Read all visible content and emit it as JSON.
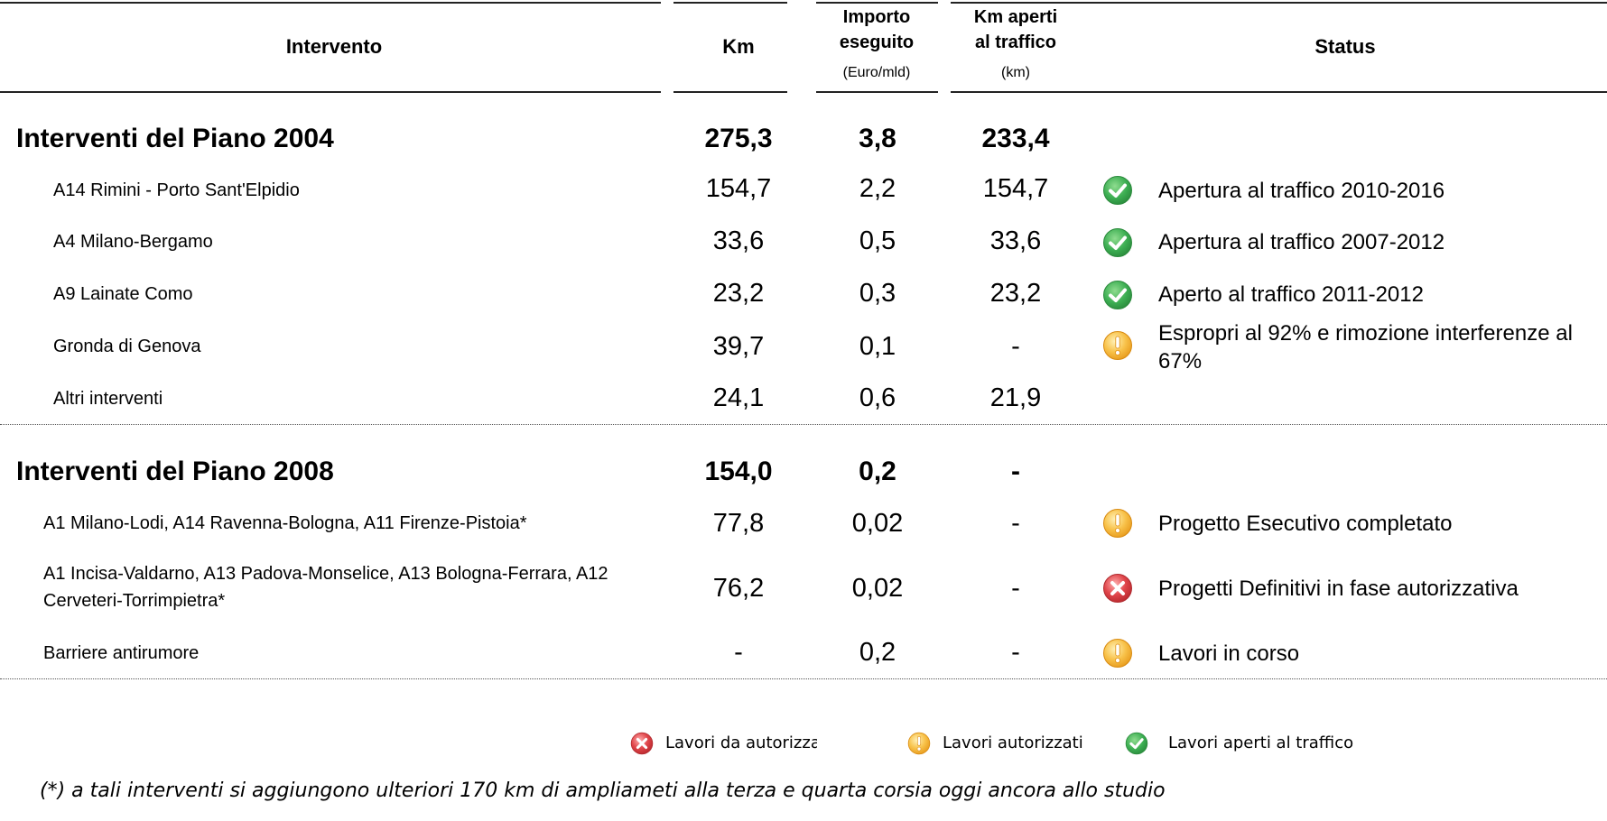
{
  "header": {
    "intervento": "Intervento",
    "km": "Km",
    "importo_line1": "Importo",
    "importo_line2": "eseguito",
    "importo_unit": "(Euro/mld)",
    "kmaperti_line1": "Km aperti",
    "kmaperti_line2": "al traffico",
    "kmaperti_unit": "(km)",
    "status": "Status"
  },
  "groups": [
    {
      "title": "Interventi del Piano 2004",
      "km": "275,3",
      "importo": "3,8",
      "km_aperti": "233,4",
      "rows": [
        {
          "label": "A14 Rimini - Porto Sant'Elpidio",
          "km": "154,7",
          "importo": "2,2",
          "km_aperti": "154,7",
          "status_icon": "check-icon",
          "status": "Apertura al traffico 2010-2016"
        },
        {
          "label": "A4 Milano-Bergamo",
          "km": "33,6",
          "importo": "0,5",
          "km_aperti": "33,6",
          "status_icon": "check-icon",
          "status": "Apertura al traffico 2007-2012"
        },
        {
          "label": "A9 Lainate Como",
          "km": "23,2",
          "importo": "0,3",
          "km_aperti": "23,2",
          "status_icon": "check-icon",
          "status": "Aperto al traffico 2011-2012"
        },
        {
          "label": "Gronda di Genova",
          "km": "39,7",
          "importo": "0,1",
          "km_aperti": "-",
          "status_icon": "warning-icon",
          "status": "Espropri al 92% e rimozione interferenze al 67%"
        },
        {
          "label": "Altri interventi",
          "km": "24,1",
          "importo": "0,6",
          "km_aperti": "21,9",
          "status_icon": "",
          "status": ""
        }
      ]
    },
    {
      "title": "Interventi del Piano 2008",
      "km": "154,0",
      "importo": "0,2",
      "km_aperti": "-",
      "rows": [
        {
          "label": "A1 Milano-Lodi, A14 Ravenna-Bologna, A11 Firenze-Pistoia*",
          "km": "77,8",
          "importo": "0,02",
          "km_aperti": "-",
          "status_icon": "warning-icon",
          "status": "Progetto Esecutivo completato"
        },
        {
          "label": "A1 Incisa-Valdarno, A13 Padova-Monselice, A13 Bologna-Ferrara, A12 Cerveteri-Torrimpietra*",
          "km": "76,2",
          "importo": "0,02",
          "km_aperti": "-",
          "status_icon": "cross-icon",
          "status": "Progetti Definitivi in fase autorizzativa"
        },
        {
          "label": "Barriere antirumore",
          "km": "-",
          "importo": "0,2",
          "km_aperti": "-",
          "status_icon": "warning-icon",
          "status": "Lavori in corso"
        }
      ]
    }
  ],
  "legend": {
    "red": "Lavori da autorizzai",
    "orange": "Lavori autorizzati",
    "green": "Lavori aperti al traffico"
  },
  "footnote": "(*) a tali interventi si aggiungono ulteriori 170 km di ampliameti alla terza e quarta corsia oggi ancora allo studio",
  "colors": {
    "green": "#3cae52",
    "orange": "#f5a623",
    "red": "#e0454a"
  }
}
